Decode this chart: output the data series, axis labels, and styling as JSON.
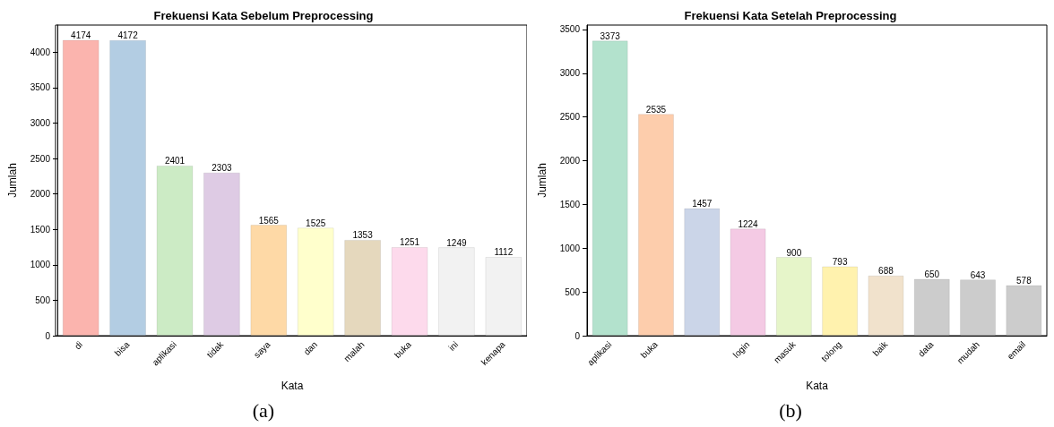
{
  "chart_data": [
    {
      "type": "bar",
      "title": "Frekuensi Kata Sebelum Preprocessing",
      "xlabel": "Kata",
      "ylabel": "Jumlah",
      "categories": [
        "di",
        "bisa",
        "aplikasi",
        "tidak",
        "saya",
        "dan",
        "malah",
        "buka",
        "ini",
        "kenapa"
      ],
      "values": [
        4174,
        4172,
        2401,
        2303,
        1565,
        1525,
        1353,
        1251,
        1249,
        1112
      ],
      "colors": [
        "#fbb4ae",
        "#b3cde3",
        "#ccebc5",
        "#decbe4",
        "#fed9a6",
        "#ffffcc",
        "#e5d8bd",
        "#fddaec",
        "#f2f2f2",
        "#f2f2f2"
      ],
      "ylim": [
        0,
        4383
      ],
      "yticks": [
        0,
        500,
        1000,
        1500,
        2000,
        2500,
        3000,
        3500,
        4000
      ],
      "data_labels": true,
      "grid": false,
      "annotations": [
        "(a)"
      ]
    },
    {
      "type": "bar",
      "title": "Frekuensi Kata Setelah Preprocessing",
      "xlabel": "Kata",
      "ylabel": "Jumlah",
      "categories": [
        "aplikasi",
        "buka",
        null,
        "login",
        "masuk",
        "tolong",
        "baik",
        "data",
        "mudah",
        "email"
      ],
      "values": [
        3373,
        2535,
        1457,
        1224,
        900,
        793,
        688,
        650,
        643,
        578
      ],
      "colors": [
        "#b3e2cd",
        "#fdcdac",
        "#cbd5e8",
        "#f4cae4",
        "#e6f5c9",
        "#fff2ae",
        "#f1e2cc",
        "#cccccc",
        "#cccccc",
        "#cccccc"
      ],
      "ylim": [
        0,
        3550
      ],
      "yticks": [
        0,
        500,
        1000,
        1500,
        2000,
        2500,
        3000,
        3500
      ],
      "data_labels": true,
      "grid": false,
      "annotations": [
        "(b)"
      ]
    }
  ]
}
